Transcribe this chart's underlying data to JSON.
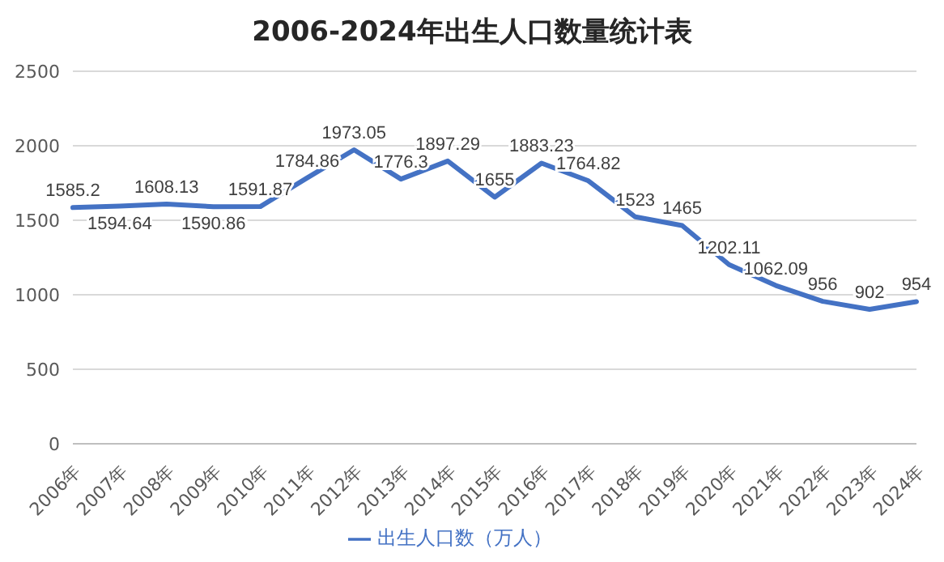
{
  "chart_data": {
    "type": "line",
    "title": "2006-2024年出生人口数量统计表",
    "categories": [
      "2006年",
      "2007年",
      "2008年",
      "2009年",
      "2010年",
      "2011年",
      "2012年",
      "2013年",
      "2014年",
      "2015年",
      "2016年",
      "2017年",
      "2018年",
      "2019年",
      "2020年",
      "2021年",
      "2022年",
      "2023年",
      "2024年"
    ],
    "series": [
      {
        "name": "出生人口数（万人）",
        "color": "#4472c4",
        "values": [
          1585.2,
          1594.64,
          1608.13,
          1590.86,
          1591.87,
          1784.86,
          1973.05,
          1776.3,
          1897.29,
          1655,
          1883.23,
          1764.82,
          1523,
          1465,
          1202.11,
          1062.09,
          956,
          902,
          954
        ]
      }
    ],
    "ylim": [
      0,
      2500
    ],
    "yticks": [
      0,
      500,
      1000,
      1500,
      2000,
      2500
    ],
    "grid": "y",
    "legend": "bottom",
    "marker": "none",
    "line_style": "solid",
    "data_labels": true
  }
}
